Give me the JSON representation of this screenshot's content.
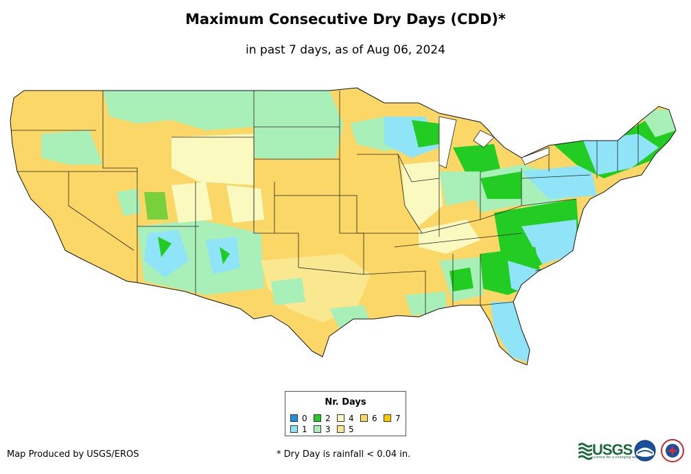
{
  "title": "Maximum Consecutive Dry Days (CDD)*",
  "subtitle": "in past 7 days, as of Aug 06, 2024",
  "legend": {
    "title": "Nr. Days",
    "items": [
      {
        "label": "0",
        "color": "#1e90e6"
      },
      {
        "label": "1",
        "color": "#8fe4f8"
      },
      {
        "label": "2",
        "color": "#22cc22"
      },
      {
        "label": "3",
        "color": "#a8f0b8"
      },
      {
        "label": "4",
        "color": "#fafac0"
      },
      {
        "label": "5",
        "color": "#fae890"
      },
      {
        "label": "6",
        "color": "#fad766"
      },
      {
        "label": "7",
        "color": "#fcc800"
      }
    ]
  },
  "footer": {
    "producer": "Map Produced by USGS/EROS",
    "note": "* Dry Day is rainfall < 0.04 in."
  },
  "logos": {
    "usgs": "USGS",
    "usgs_tagline": "science for a changing world"
  },
  "icons": [
    "usgs-logo-icon",
    "noaa-logo-icon",
    "nws-logo-icon"
  ]
}
